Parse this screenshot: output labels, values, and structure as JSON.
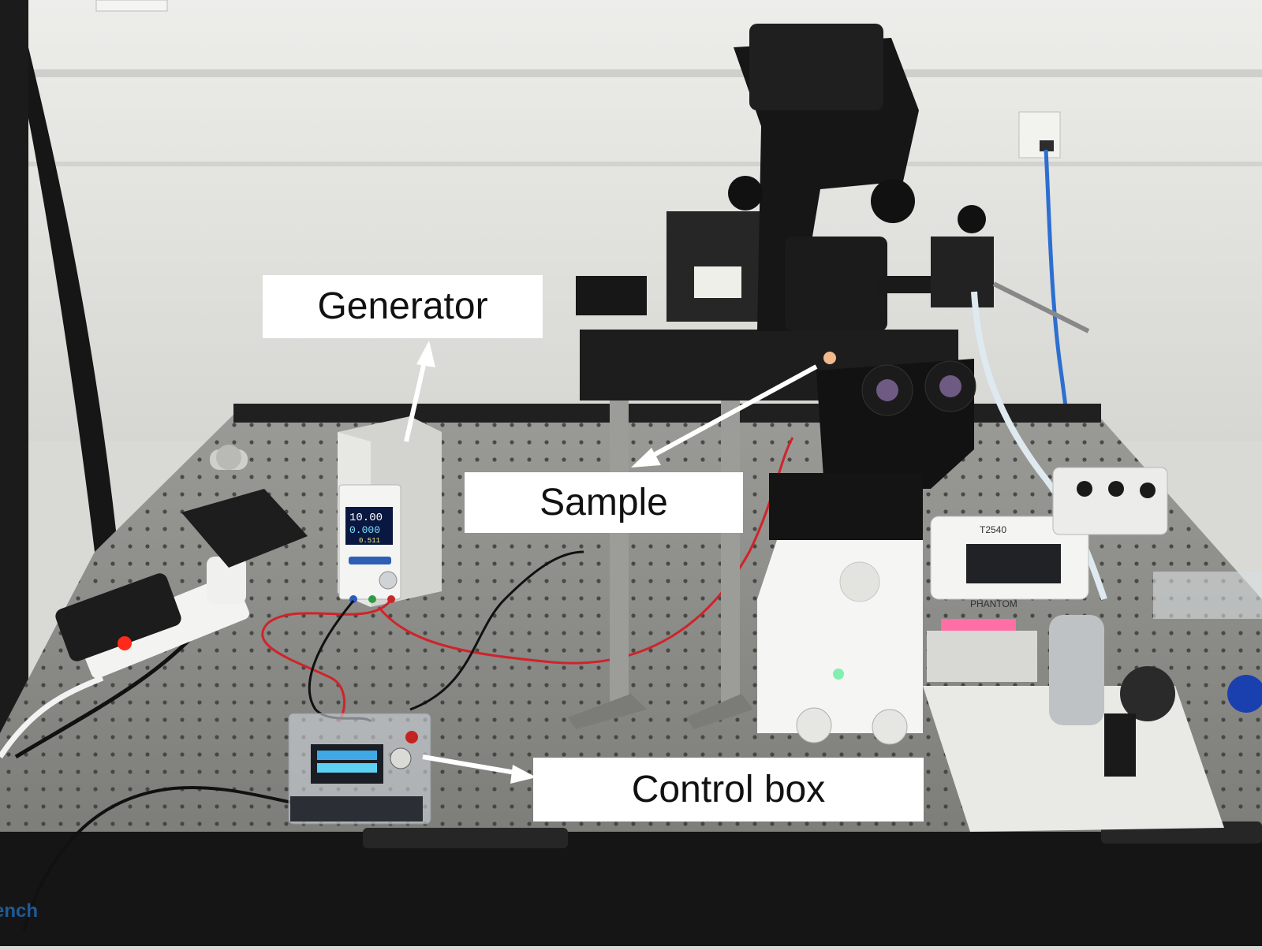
{
  "labels": {
    "generator": "Generator",
    "sample": "Sample",
    "control_box": "Control box"
  },
  "display": {
    "voltage": "10.00",
    "current": "0.000",
    "power": "0.511",
    "camera_model": "T2540",
    "camera_brand": "PHANTOM"
  },
  "colors": {
    "label_background": "#ffffff",
    "label_text": "#111111",
    "arrow": "#ffffff",
    "table_surface": "#8a8a86",
    "wall": "#e6e6e2"
  }
}
